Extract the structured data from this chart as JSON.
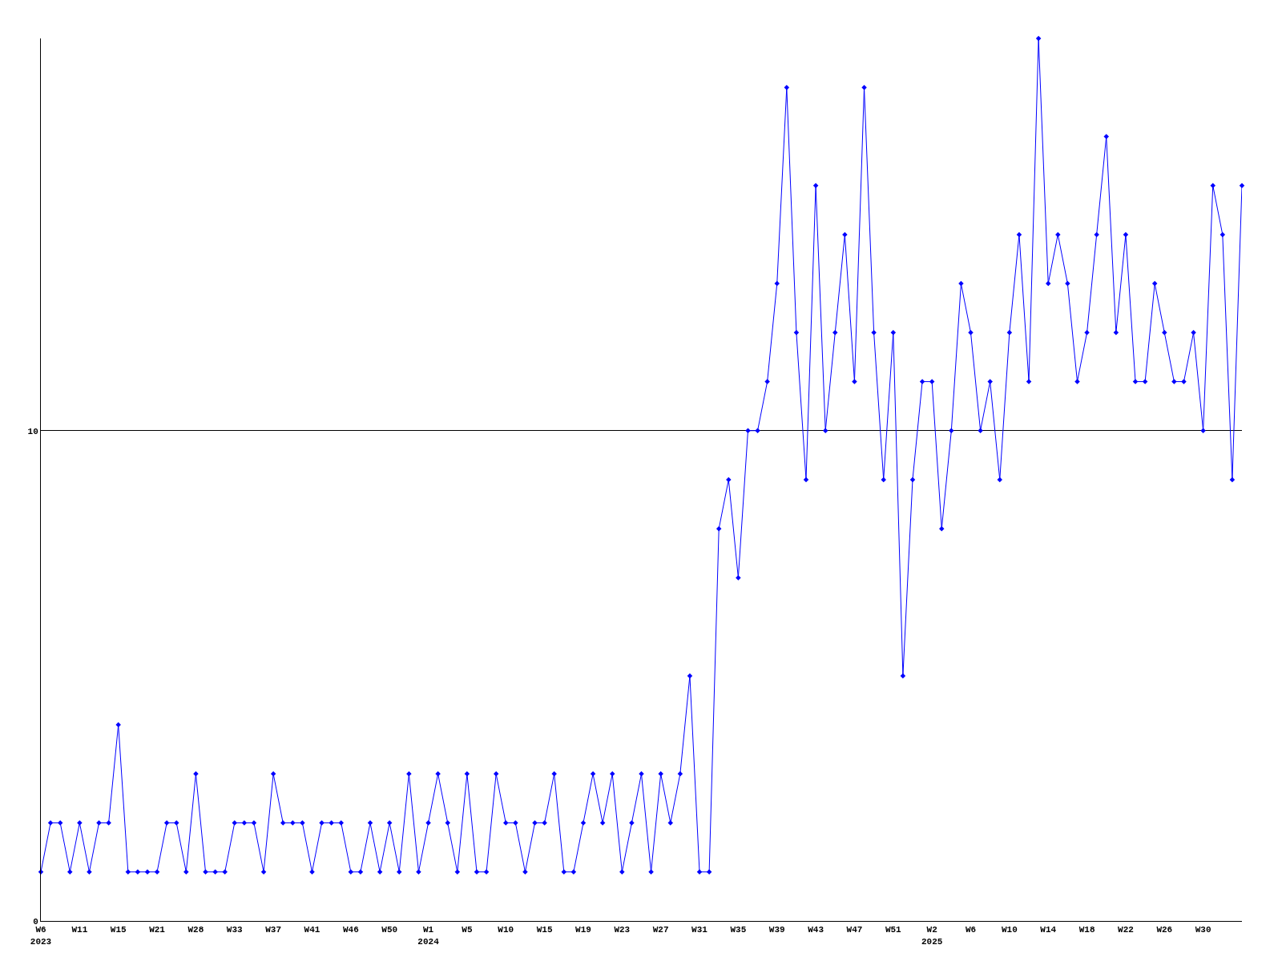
{
  "chart_data": {
    "type": "line",
    "categories": [
      "W6\n2023",
      null,
      null,
      null,
      "W11",
      null,
      null,
      null,
      "W15",
      null,
      null,
      null,
      "W21",
      null,
      null,
      null,
      "W28",
      null,
      null,
      null,
      "W33",
      null,
      null,
      null,
      "W37",
      null,
      null,
      null,
      "W41",
      null,
      null,
      null,
      "W46",
      null,
      null,
      null,
      "W50",
      null,
      null,
      null,
      "W1\n2024",
      null,
      null,
      null,
      "W5",
      null,
      null,
      null,
      "W10",
      null,
      null,
      null,
      "W15",
      null,
      null,
      null,
      "W19",
      null,
      null,
      null,
      "W23",
      null,
      null,
      null,
      "W27",
      null,
      null,
      null,
      "W31",
      null,
      null,
      null,
      "W35",
      null,
      null,
      null,
      "W39",
      null,
      null,
      null,
      "W43",
      null,
      null,
      null,
      "W47",
      null,
      null,
      null,
      "W51",
      null,
      null,
      null,
      "W2\n2025",
      null,
      null,
      null,
      "W6",
      null,
      null,
      null,
      "W10",
      null,
      null,
      null,
      "W14",
      null,
      null,
      null,
      "W18",
      null,
      null,
      null,
      "W22",
      null,
      null,
      null,
      "W26",
      null,
      null,
      null,
      "W30",
      null,
      null,
      null,
      null
    ],
    "series": [
      {
        "color": "#0000ff",
        "values": [
          1,
          2,
          2,
          1,
          2,
          1,
          2,
          2,
          4,
          1,
          1,
          1,
          1,
          2,
          2,
          1,
          3,
          1,
          1,
          1,
          2,
          2,
          2,
          1,
          3,
          2,
          2,
          2,
          1,
          2,
          2,
          2,
          1,
          1,
          2,
          1,
          2,
          1,
          3,
          1,
          2,
          3,
          2,
          1,
          3,
          1,
          1,
          3,
          2,
          2,
          1,
          2,
          2,
          3,
          1,
          1,
          2,
          3,
          2,
          3,
          1,
          2,
          3,
          1,
          3,
          2,
          3,
          5,
          1,
          1,
          8,
          9,
          7,
          10,
          10,
          11,
          13,
          17,
          12,
          9,
          15,
          10,
          12,
          14,
          11,
          17,
          12,
          9,
          12,
          5,
          9,
          11,
          11,
          8,
          10,
          13,
          12,
          10,
          11,
          9,
          12,
          14,
          11,
          18,
          13,
          14,
          13,
          11,
          12,
          14,
          16,
          12,
          14,
          11,
          11,
          13,
          12,
          11,
          11,
          12,
          10,
          15,
          14,
          9,
          15
        ]
      }
    ],
    "ylim": [
      0,
      18
    ],
    "yticks": [
      0,
      10
    ],
    "grid": "y",
    "marker": "diamond",
    "line_style": "solid"
  }
}
